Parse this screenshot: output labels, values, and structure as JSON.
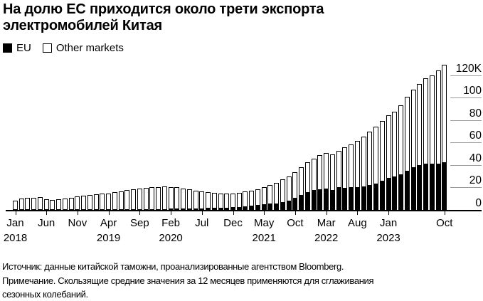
{
  "title": "На долю ЕС приходится около трети экспорта электромобилей Китая",
  "legend": {
    "eu_label": "EU",
    "other_label": "Other markets"
  },
  "colors": {
    "eu": "#000000",
    "other_fill": "#ffffff",
    "bar_border": "#000000",
    "gridline": "#9a9a9a",
    "axis": "#000000"
  },
  "footer": {
    "source": "Источник: данные китайской таможни, проанализированные агентством Bloomberg.",
    "note": "Примечание. Скользящие средние значения за 12 месяцев применяются для сглаживания сезонных колебаний."
  },
  "chart_data": {
    "type": "bar",
    "stacked": true,
    "title": "На долю ЕС приходится около трети экспорта электромобилей Китая",
    "legend_position": "top-left",
    "y_axis_side": "right",
    "ylim": [
      0,
      130
    ],
    "y_ticks": [
      0,
      20,
      40,
      60,
      80,
      100,
      120
    ],
    "y_tick_labels": [
      "0",
      "20",
      "40",
      "60",
      "80",
      "100",
      "120K"
    ],
    "grid": "right-stubs-only",
    "x": [
      "Jan 2018",
      "Feb 2018",
      "Mar 2018",
      "Apr 2018",
      "May 2018",
      "Jun 2018",
      "Jul 2018",
      "Aug 2018",
      "Sep 2018",
      "Oct 2018",
      "Nov 2018",
      "Dec 2018",
      "Jan 2019",
      "Feb 2019",
      "Mar 2019",
      "Apr 2019",
      "May 2019",
      "Jun 2019",
      "Jul 2019",
      "Aug 2019",
      "Sep 2019",
      "Oct 2019",
      "Nov 2019",
      "Dec 2019",
      "Jan 2020",
      "Feb 2020",
      "Mar 2020",
      "Apr 2020",
      "May 2020",
      "Jun 2020",
      "Jul 2020",
      "Aug 2020",
      "Sep 2020",
      "Oct 2020",
      "Nov 2020",
      "Dec 2020",
      "Jan 2021",
      "Feb 2021",
      "Mar 2021",
      "Apr 2021",
      "May 2021",
      "Jun 2021",
      "Jul 2021",
      "Aug 2021",
      "Sep 2021",
      "Oct 2021",
      "Nov 2021",
      "Dec 2021",
      "Jan 2022",
      "Feb 2022",
      "Mar 2022",
      "Apr 2022",
      "May 2022",
      "Jun 2022",
      "Jul 2022",
      "Aug 2022",
      "Sep 2022",
      "Oct 2022",
      "Nov 2022",
      "Dec 2022",
      "Jan 2023",
      "Feb 2023",
      "Mar 2023",
      "Apr 2023",
      "May 2023",
      "Jun 2023",
      "Jul 2023",
      "Aug 2023",
      "Sep 2023",
      "Oct 2023"
    ],
    "x_tick_positions": [
      0,
      5,
      10,
      15,
      20,
      25,
      30,
      35,
      40,
      45,
      50,
      55,
      60,
      69
    ],
    "x_tick_labels": [
      [
        "Jan",
        "2018"
      ],
      [
        "Jun",
        ""
      ],
      [
        "Nov",
        ""
      ],
      [
        "Apr",
        "2019"
      ],
      [
        "Sep",
        ""
      ],
      [
        "Feb",
        "2020"
      ],
      [
        "Jul",
        ""
      ],
      [
        "Dec",
        ""
      ],
      [
        "May",
        "2021"
      ],
      [
        "Oct",
        ""
      ],
      [
        "Mar",
        "2022"
      ],
      [
        "Aug",
        ""
      ],
      [
        "Jan",
        "2023"
      ],
      [
        "Oct",
        ""
      ]
    ],
    "series": [
      {
        "name": "EU",
        "color": "#000000",
        "values": [
          0.1,
          0.1,
          0.1,
          0.1,
          0.2,
          0.2,
          0.2,
          0.2,
          0.3,
          0.3,
          0.3,
          0.4,
          0.4,
          0.4,
          0.5,
          0.5,
          0.5,
          0.6,
          0.6,
          0.7,
          0.7,
          0.8,
          0.8,
          0.9,
          0.9,
          1.0,
          1.1,
          1.2,
          1.3,
          1.4,
          1.5,
          1.7,
          1.9,
          2.0,
          2.2,
          2.5,
          2.8,
          3.3,
          4.0,
          4.6,
          5.3,
          5.5,
          6.0,
          7.0,
          8.5,
          10.8,
          13.5,
          16.0,
          17.5,
          18.5,
          19.0,
          18.0,
          20.0,
          19.5,
          20.0,
          20.5,
          21.0,
          22.0,
          23.5,
          26.0,
          28.5,
          29.5,
          31.5,
          35.0,
          38.0,
          40.0,
          41.0,
          41.0,
          41.5,
          42.5
        ]
      },
      {
        "name": "Other markets",
        "color": "#ffffff",
        "values": [
          8.1,
          9.8,
          10.5,
          10.9,
          11.4,
          9.4,
          8.8,
          9.3,
          9.8,
          10.7,
          11.5,
          12.2,
          12.8,
          13.4,
          13.8,
          14.4,
          15.3,
          16.2,
          17.0,
          17.7,
          18.5,
          19.0,
          19.4,
          19.7,
          19.9,
          19.6,
          18.9,
          18.0,
          17.0,
          15.9,
          14.8,
          13.9,
          13.1,
          12.6,
          12.2,
          12.4,
          12.7,
          13.1,
          13.4,
          14.1,
          14.9,
          16.5,
          18.0,
          20.0,
          21.5,
          22.7,
          24.5,
          26.5,
          28.0,
          30.5,
          31.5,
          31.5,
          32.5,
          36.0,
          38.5,
          41.0,
          44.5,
          47.5,
          50.5,
          53.5,
          55.5,
          58.0,
          62.0,
          66.0,
          69.0,
          72.0,
          76.5,
          78.5,
          83.0,
          86.5
        ]
      }
    ]
  }
}
